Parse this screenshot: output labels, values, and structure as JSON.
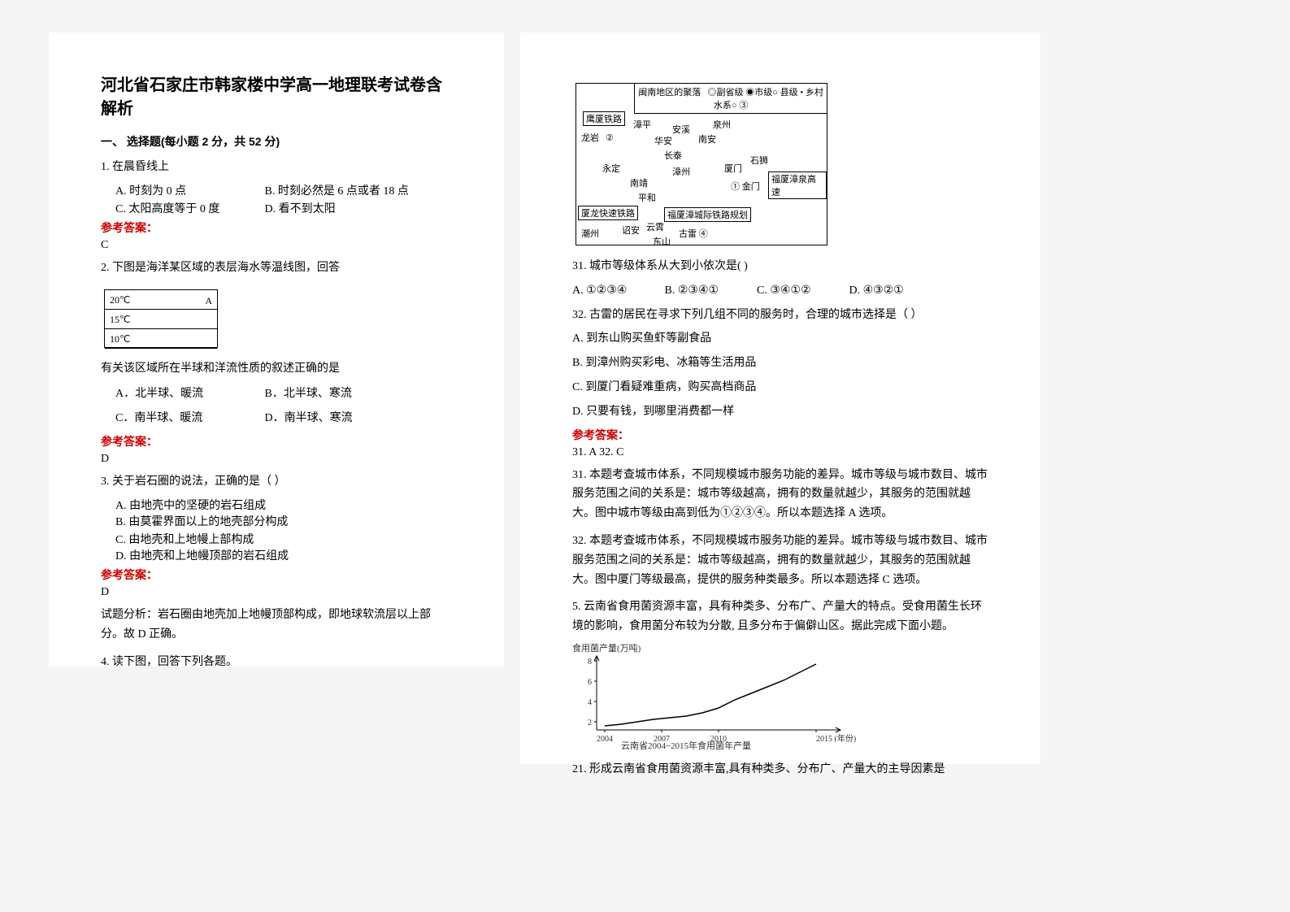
{
  "title": "河北省石家庄市韩家楼中学高一地理联考试卷含解析",
  "section1_title": "一、 选择题(每小题 2 分，共 52 分)",
  "q1": {
    "stem": "1. 在晨昏线上",
    "A": "A.  时刻为 0 点",
    "B": "B.  时刻必然是 6 点或者 18 点",
    "C": "C.  太阳高度等于 0 度",
    "D": "D.  看不到太阳",
    "ans_label": "参考答案：",
    "ans": "C"
  },
  "q2": {
    "stem": "2. 下图是海洋某区域的表层海水等温线图，回答",
    "contour": {
      "l1": "20℃",
      "l2": "15℃",
      "l3": "10℃",
      "arrow": "A"
    },
    "sub": "有关该区域所在半球和洋流性质的叙述正确的是",
    "A": "A．北半球、暖流",
    "B": "B．北半球、寒流",
    "C": "C．南半球、暖流",
    "D": "D．南半球、寒流",
    "ans_label": "参考答案：",
    "ans": "D"
  },
  "q3": {
    "stem": "3. 关于岩石圈的说法，正确的是（        ）",
    "A": "A.  由地壳中的坚硬的岩石组成",
    "B": "B.  由莫霍界面以上的地壳部分构成",
    "C": "C.  由地壳和上地幔上部构成",
    "D": "D.  由地壳和上地幔顶部的岩石组成",
    "ans_label": "参考答案：",
    "ans": "D",
    "analysis": "试题分析：岩石圈由地壳加上地幔顶部构成，即地球软流层以上部分。故 D 正确。"
  },
  "q4_stem": "4. 读下图，回答下列各题。",
  "map": {
    "legend_title": "闽南地区的聚落",
    "legend_items": "◎副省级 ◉市级○ 县级 • 乡村",
    "hydro": "水系○ ③",
    "rail1": "鹰厦铁路",
    "city_longyan": "龙岩",
    "mark2": "②",
    "city_zhangping": "漳平",
    "city_anxi": "安溪",
    "city_quanzhou": "泉州",
    "city_huaan": "华安",
    "city_nanan": "南安",
    "city_changtai": "长泰",
    "city_yongding": "永定",
    "city_zhangzhou": "漳州",
    "mark_xiamen": "厦门",
    "city_shishi": "石狮",
    "city_nanjing": "南靖",
    "mark1": "① 金门",
    "hwy": "福厦漳泉高速",
    "city_pinghe": "平和",
    "rail2": "厦龙快速铁路",
    "rail3": "福厦漳城际铁路规划",
    "city_chaozhou": "潮州",
    "city_zhaoan": "诏安",
    "city_yunxiao": "云霄",
    "city_gulei": "古雷 ④",
    "city_dongshan": "东山"
  },
  "q31": {
    "stem": "31.  城市等级体系从大到小依次是(      )",
    "A": "A.  ①②③④",
    "B": "B.  ②③④①",
    "C": "C.  ③④①②",
    "D": "D.  ④③②①"
  },
  "q32": {
    "stem": "32.  古雷的居民在寻求下列几组不同的服务时，合理的城市选择是（     ）",
    "A": "A.  到东山购买鱼虾等副食品",
    "B": "B.  到漳州购买彩电、冰箱等生活用品",
    "C": "C.  到厦门看疑难重病，购买高档商品",
    "D": "D.  只要有钱，到哪里消费都一样",
    "ans_label": "参考答案：",
    "ans": "31.  A        32.  C",
    "analysis31": "31.  本题考查城市体系，不同规模城市服务功能的差异。城市等级与城市数目、城市服务范围之间的关系是：城市等级越高，拥有的数量就越少，其服务的范围就越大。图中城市等级由高到低为①②③④。所以本题选择 A 选项。",
    "analysis32": "32.  本题考查城市体系，不同规模城市服务功能的差异。城市等级与城市数目、城市服务范围之间的关系是：城市等级越高，拥有的数量就越少，其服务的范围就越大。图中厦门等级最高，提供的服务种类最多。所以本题选择 C 选项。"
  },
  "q5": {
    "stem": "5. 云南省食用菌资源丰富，具有种类多、分布广、产量大的特点。受食用菌生长环境的影响，食用菌分布较为分散, 且多分布于偏僻山区。据此完成下面小题。",
    "chart": {
      "ylabel": "食用菌产量(万吨)",
      "caption": "云南省2004~2015年食用菌年产量",
      "yticks": [
        "8",
        "6",
        "4",
        "2"
      ],
      "xticks": [
        "2004",
        "2007",
        "2010",
        "2015  (年份)"
      ],
      "xtick_positions": [
        40,
        110,
        180,
        300
      ],
      "ytick_positions": [
        10,
        35,
        60,
        85
      ],
      "line_points": [
        [
          40,
          90
        ],
        [
          60,
          88
        ],
        [
          80,
          85
        ],
        [
          100,
          82
        ],
        [
          120,
          80
        ],
        [
          140,
          78
        ],
        [
          160,
          74
        ],
        [
          180,
          68
        ],
        [
          200,
          58
        ],
        [
          220,
          50
        ],
        [
          240,
          42
        ],
        [
          260,
          34
        ],
        [
          280,
          24
        ],
        [
          300,
          14
        ]
      ],
      "colors": {
        "axis": "#000000",
        "line": "#000000",
        "text": "#333333"
      }
    }
  },
  "q21_stem": "21.  形成云南省食用菌资源丰富,具有种类多、分布广、产量大的主导因素是"
}
